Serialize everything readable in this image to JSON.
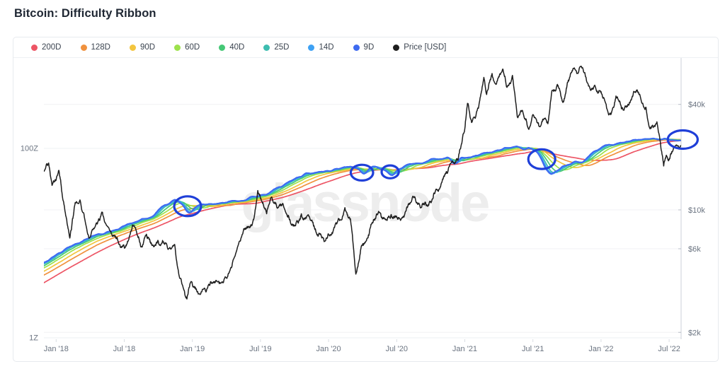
{
  "title": "Bitcoin: Difficulty Ribbon",
  "watermark": "glassnode",
  "legend": [
    {
      "label": "200D",
      "color": "#ed5565"
    },
    {
      "label": "128D",
      "color": "#f0913e"
    },
    {
      "label": "90D",
      "color": "#f3c53e"
    },
    {
      "label": "60D",
      "color": "#9de24c"
    },
    {
      "label": "40D",
      "color": "#45c876"
    },
    {
      "label": "25D",
      "color": "#3dbdb0"
    },
    {
      "label": "14D",
      "color": "#3da1f4"
    },
    {
      "label": "9D",
      "color": "#3e6af0"
    },
    {
      "label": "Price [USD]",
      "color": "#1e1e1e"
    }
  ],
  "chart_data": {
    "type": "line",
    "title": "Bitcoin: Difficulty Ribbon",
    "grid": true,
    "legend_position": "top",
    "x_axis": {
      "range": [
        2017.91,
        2022.588
      ],
      "ticks": [
        {
          "label": "Jan '18",
          "t": 2018.0
        },
        {
          "label": "Jul '18",
          "t": 2018.5
        },
        {
          "label": "Jan '19",
          "t": 2019.0
        },
        {
          "label": "Jul '19",
          "t": 2019.5
        },
        {
          "label": "Jan '20",
          "t": 2020.0
        },
        {
          "label": "Jul '20",
          "t": 2020.5
        },
        {
          "label": "Jan '21",
          "t": 2021.0
        },
        {
          "label": "Jul '21",
          "t": 2021.5
        },
        {
          "label": "Jan '22",
          "t": 2022.0
        },
        {
          "label": "Jul '22",
          "t": 2022.5
        }
      ]
    },
    "left_axis": {
      "unit": "difficulty (Z)",
      "scale": "log",
      "range": [
        0.966,
        902
      ],
      "ticks": [
        {
          "label": "100Z",
          "value": 100
        },
        {
          "label": "1Z",
          "value": 1
        }
      ]
    },
    "right_axis": {
      "unit": "USD",
      "scale": "log",
      "range": [
        1828,
        73600
      ],
      "ticks": [
        {
          "label": "$40k",
          "value": 40000
        },
        {
          "label": "$10k",
          "value": 10000
        },
        {
          "label": "$6k",
          "value": 6000
        },
        {
          "label": "$2k",
          "value": 2000
        }
      ]
    },
    "ribbon_windows_days": [
      200,
      128,
      90,
      60,
      40,
      25,
      14,
      9
    ],
    "difficulty_raw": [
      [
        2016.9,
        1.3
      ],
      [
        2017.3,
        2.0
      ],
      [
        2017.6,
        3.6
      ],
      [
        2017.91,
        6.4
      ],
      [
        2017.98,
        7.3
      ],
      [
        2018.08,
        9.3
      ],
      [
        2018.19,
        10.7
      ],
      [
        2018.29,
        12.3
      ],
      [
        2018.4,
        13.6
      ],
      [
        2018.5,
        15.6
      ],
      [
        2018.61,
        17.3
      ],
      [
        2018.69,
        18.5
      ],
      [
        2018.76,
        24.0
      ],
      [
        2018.87,
        28.5
      ],
      [
        2018.91,
        26.0
      ],
      [
        2018.95,
        20.5
      ],
      [
        2018.99,
        23.0
      ],
      [
        2019.03,
        26.0
      ],
      [
        2019.13,
        25.5
      ],
      [
        2019.23,
        27.0
      ],
      [
        2019.34,
        28.5
      ],
      [
        2019.44,
        30.5
      ],
      [
        2019.55,
        34.4
      ],
      [
        2019.65,
        40.9
      ],
      [
        2019.76,
        50.3
      ],
      [
        2019.82,
        54.8
      ],
      [
        2019.91,
        56.7
      ],
      [
        2020.0,
        57.7
      ],
      [
        2020.07,
        61.8
      ],
      [
        2020.15,
        64.0
      ],
      [
        2020.2,
        60.0
      ],
      [
        2020.24,
        52.0
      ],
      [
        2020.28,
        58.0
      ],
      [
        2020.32,
        64.0
      ],
      [
        2020.38,
        62.0
      ],
      [
        2020.42,
        58.0
      ],
      [
        2020.45,
        52.0
      ],
      [
        2020.49,
        60.0
      ],
      [
        2020.57,
        66.0
      ],
      [
        2020.64,
        70.0
      ],
      [
        2020.72,
        74.0
      ],
      [
        2020.8,
        78.0
      ],
      [
        2020.87,
        81.0
      ],
      [
        2020.89,
        72.0
      ],
      [
        2020.91,
        67.5
      ],
      [
        2020.96,
        79.0
      ],
      [
        2021.04,
        81.5
      ],
      [
        2021.12,
        87.0
      ],
      [
        2021.2,
        93.0
      ],
      [
        2021.3,
        100.0
      ],
      [
        2021.38,
        105.0
      ],
      [
        2021.42,
        95.0
      ],
      [
        2021.455,
        105.0
      ],
      [
        2021.52,
        95.0
      ],
      [
        2021.545,
        80.0
      ],
      [
        2021.57,
        65.0
      ],
      [
        2021.6,
        56.0
      ],
      [
        2021.615,
        52.0
      ],
      [
        2021.65,
        57.0
      ],
      [
        2021.69,
        62.0
      ],
      [
        2021.74,
        66.5
      ],
      [
        2021.8,
        71.0
      ],
      [
        2021.85,
        73.5
      ],
      [
        2021.93,
        92.0
      ],
      [
        2022.0,
        109.0
      ],
      [
        2022.08,
        110.0
      ],
      [
        2022.16,
        113.0
      ],
      [
        2022.27,
        121.0
      ],
      [
        2022.37,
        125.0
      ],
      [
        2022.44,
        127.0
      ],
      [
        2022.5,
        125.0
      ],
      [
        2022.55,
        123.0
      ],
      [
        2022.588,
        123.0
      ]
    ],
    "price_usd": [
      [
        2017.91,
        16500
      ],
      [
        2017.945,
        18500
      ],
      [
        2017.97,
        13800
      ],
      [
        2018.0,
        14800
      ],
      [
        2018.02,
        16800
      ],
      [
        2018.06,
        10500
      ],
      [
        2018.1,
        6900
      ],
      [
        2018.14,
        11000
      ],
      [
        2018.175,
        11400
      ],
      [
        2018.24,
        6900
      ],
      [
        2018.3,
        8300
      ],
      [
        2018.34,
        9700
      ],
      [
        2018.4,
        7500
      ],
      [
        2018.48,
        6100
      ],
      [
        2018.53,
        6700
      ],
      [
        2018.56,
        8200
      ],
      [
        2018.62,
        6200
      ],
      [
        2018.66,
        7200
      ],
      [
        2018.7,
        6400
      ],
      [
        2018.75,
        6600
      ],
      [
        2018.8,
        6500
      ],
      [
        2018.87,
        6350
      ],
      [
        2018.9,
        4300
      ],
      [
        2018.92,
        3900
      ],
      [
        2018.96,
        3100
      ],
      [
        2018.99,
        3900
      ],
      [
        2019.03,
        3500
      ],
      [
        2019.1,
        3400
      ],
      [
        2019.18,
        3900
      ],
      [
        2019.25,
        4100
      ],
      [
        2019.3,
        5200
      ],
      [
        2019.37,
        7300
      ],
      [
        2019.41,
        8000
      ],
      [
        2019.45,
        8800
      ],
      [
        2019.48,
        12900
      ],
      [
        2019.52,
        10800
      ],
      [
        2019.545,
        9500
      ],
      [
        2019.58,
        11800
      ],
      [
        2019.62,
        10300
      ],
      [
        2019.66,
        10800
      ],
      [
        2019.72,
        8500
      ],
      [
        2019.76,
        8300
      ],
      [
        2019.8,
        9500
      ],
      [
        2019.84,
        9200
      ],
      [
        2019.88,
        8600
      ],
      [
        2019.92,
        7200
      ],
      [
        2019.96,
        6900
      ],
      [
        2020.0,
        7200
      ],
      [
        2020.05,
        8300
      ],
      [
        2020.12,
        10300
      ],
      [
        2020.16,
        8900
      ],
      [
        2020.2,
        4300
      ],
      [
        2020.24,
        6200
      ],
      [
        2020.28,
        6800
      ],
      [
        2020.33,
        8800
      ],
      [
        2020.38,
        9600
      ],
      [
        2020.42,
        8800
      ],
      [
        2020.46,
        9400
      ],
      [
        2020.5,
        9100
      ],
      [
        2020.55,
        9200
      ],
      [
        2020.6,
        11000
      ],
      [
        2020.63,
        11900
      ],
      [
        2020.68,
        10300
      ],
      [
        2020.72,
        10700
      ],
      [
        2020.76,
        11500
      ],
      [
        2020.8,
        13000
      ],
      [
        2020.85,
        15500
      ],
      [
        2020.9,
        18500
      ],
      [
        2020.95,
        19200
      ],
      [
        2021.0,
        29000
      ],
      [
        2021.02,
        40500
      ],
      [
        2021.05,
        31500
      ],
      [
        2021.08,
        34000
      ],
      [
        2021.1,
        38000
      ],
      [
        2021.14,
        57000
      ],
      [
        2021.16,
        45500
      ],
      [
        2021.2,
        60000
      ],
      [
        2021.23,
        52000
      ],
      [
        2021.28,
        63500
      ],
      [
        2021.31,
        50000
      ],
      [
        2021.35,
        58500
      ],
      [
        2021.385,
        34000
      ],
      [
        2021.42,
        37000
      ],
      [
        2021.45,
        33000
      ],
      [
        2021.47,
        28800
      ],
      [
        2021.5,
        35000
      ],
      [
        2021.53,
        31500
      ],
      [
        2021.55,
        29800
      ],
      [
        2021.58,
        33000
      ],
      [
        2021.61,
        31000
      ],
      [
        2021.64,
        48000
      ],
      [
        2021.68,
        52000
      ],
      [
        2021.72,
        41000
      ],
      [
        2021.76,
        55000
      ],
      [
        2021.8,
        64000
      ],
      [
        2021.83,
        60000
      ],
      [
        2021.855,
        66000
      ],
      [
        2021.89,
        57000
      ],
      [
        2021.92,
        49000
      ],
      [
        2021.95,
        51000
      ],
      [
        2021.98,
        46500
      ],
      [
        2022.0,
        47300
      ],
      [
        2022.03,
        41500
      ],
      [
        2022.06,
        35000
      ],
      [
        2022.09,
        38500
      ],
      [
        2022.11,
        44600
      ],
      [
        2022.15,
        37700
      ],
      [
        2022.19,
        39000
      ],
      [
        2022.22,
        42500
      ],
      [
        2022.24,
        47400
      ],
      [
        2022.28,
        45500
      ],
      [
        2022.31,
        39500
      ],
      [
        2022.33,
        38500
      ],
      [
        2022.36,
        29000
      ],
      [
        2022.39,
        30000
      ],
      [
        2022.41,
        31800
      ],
      [
        2022.44,
        22500
      ],
      [
        2022.46,
        17800
      ],
      [
        2022.48,
        20500
      ],
      [
        2022.5,
        19300
      ],
      [
        2022.52,
        21500
      ],
      [
        2022.55,
        23400
      ],
      [
        2022.57,
        22500
      ],
      [
        2022.588,
        23300
      ]
    ],
    "annotations": {
      "color": "#1f3fd8",
      "circles": [
        {
          "t": 2018.965,
          "z": 24.5,
          "rx_days": 36,
          "ry_factor": 1.272
        },
        {
          "t": 2020.245,
          "z": 55.5,
          "rx_days": 30,
          "ry_factor": 1.21
        },
        {
          "t": 2020.452,
          "z": 56.5,
          "rx_days": 23,
          "ry_factor": 1.17
        },
        {
          "t": 2021.565,
          "z": 77.0,
          "rx_days": 36,
          "ry_factor": 1.27
        },
        {
          "t": 2022.6,
          "z": 124.0,
          "rx_days": 40,
          "ry_factor": 1.25
        }
      ]
    }
  }
}
